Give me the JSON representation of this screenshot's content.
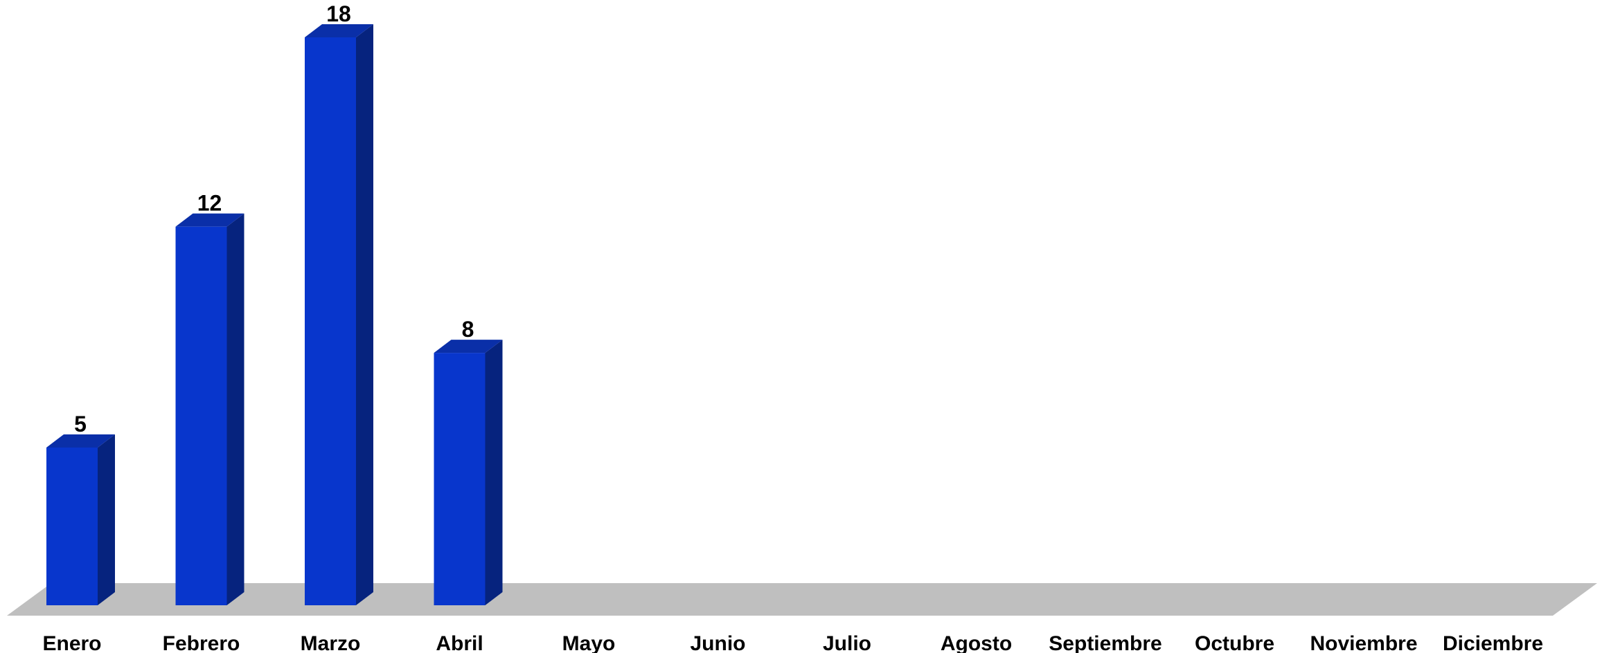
{
  "chart_data": {
    "type": "bar",
    "categories": [
      "Enero",
      "Febrero",
      "Marzo",
      "Abril",
      "Mayo",
      "Junio",
      "Julio",
      "Agosto",
      "Septiembre",
      "Octubre",
      "Noviembre",
      "Diciembre"
    ],
    "values": [
      5,
      12,
      18,
      8,
      null,
      null,
      null,
      null,
      null,
      null,
      null,
      null
    ],
    "title": "",
    "xlabel": "",
    "ylabel": "",
    "ylim": [
      0,
      18
    ],
    "grid": false,
    "legend": "none",
    "three_d": true,
    "colors": {
      "bar_front": "#0836CC",
      "bar_side": "#06237E",
      "bar_top": "#0A2FA8",
      "floor": "#BFBFBF"
    }
  }
}
